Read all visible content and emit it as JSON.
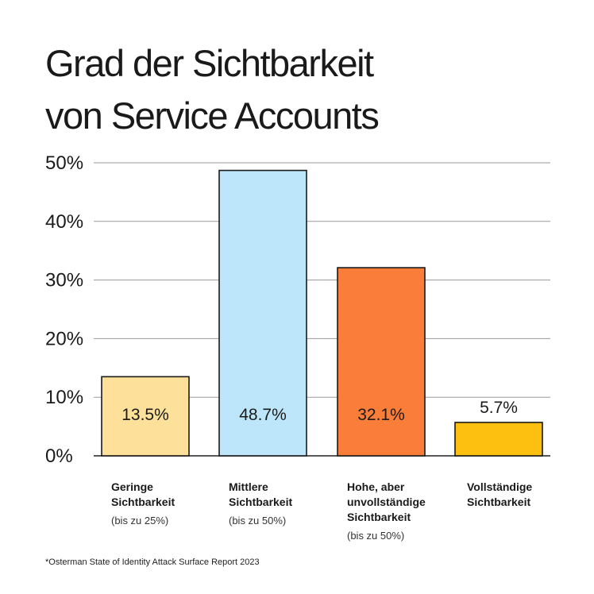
{
  "chart_data": {
    "type": "bar",
    "title_lines": [
      "Grad der Sichtbarkeit",
      "von Service Accounts"
    ],
    "categories": [
      {
        "label": "Geringe\nSichtbarkeit",
        "sublabel": "(bis zu 25%)"
      },
      {
        "label": "Mittlere\nSichtbarkeit",
        "sublabel": "(bis zu 50%)"
      },
      {
        "label": "Hohe, aber\nunvollständige\nSichtbarkeit",
        "sublabel": "(bis zu 50%)"
      },
      {
        "label": "Vollständige\nSichtbarkeit",
        "sublabel": ""
      }
    ],
    "values": [
      13.5,
      48.7,
      32.1,
      5.7
    ],
    "value_labels": [
      "13.5%",
      "48.7%",
      "32.1%",
      "5.7%"
    ],
    "bar_colors": [
      "#fde09a",
      "#bde6fb",
      "#fb7d3a",
      "#fdbf10"
    ],
    "y_ticks": [
      {
        "value": 0,
        "label": "0%"
      },
      {
        "value": 10,
        "label": "10%"
      },
      {
        "value": 20,
        "label": "20%"
      },
      {
        "value": 30,
        "label": "30%"
      },
      {
        "value": 40,
        "label": "40%"
      },
      {
        "value": 50,
        "label": "50%"
      }
    ],
    "ylim": [
      0,
      50
    ],
    "grid": true,
    "footnote": "*Osterman State of Identity Attack Surface Report 2023"
  }
}
